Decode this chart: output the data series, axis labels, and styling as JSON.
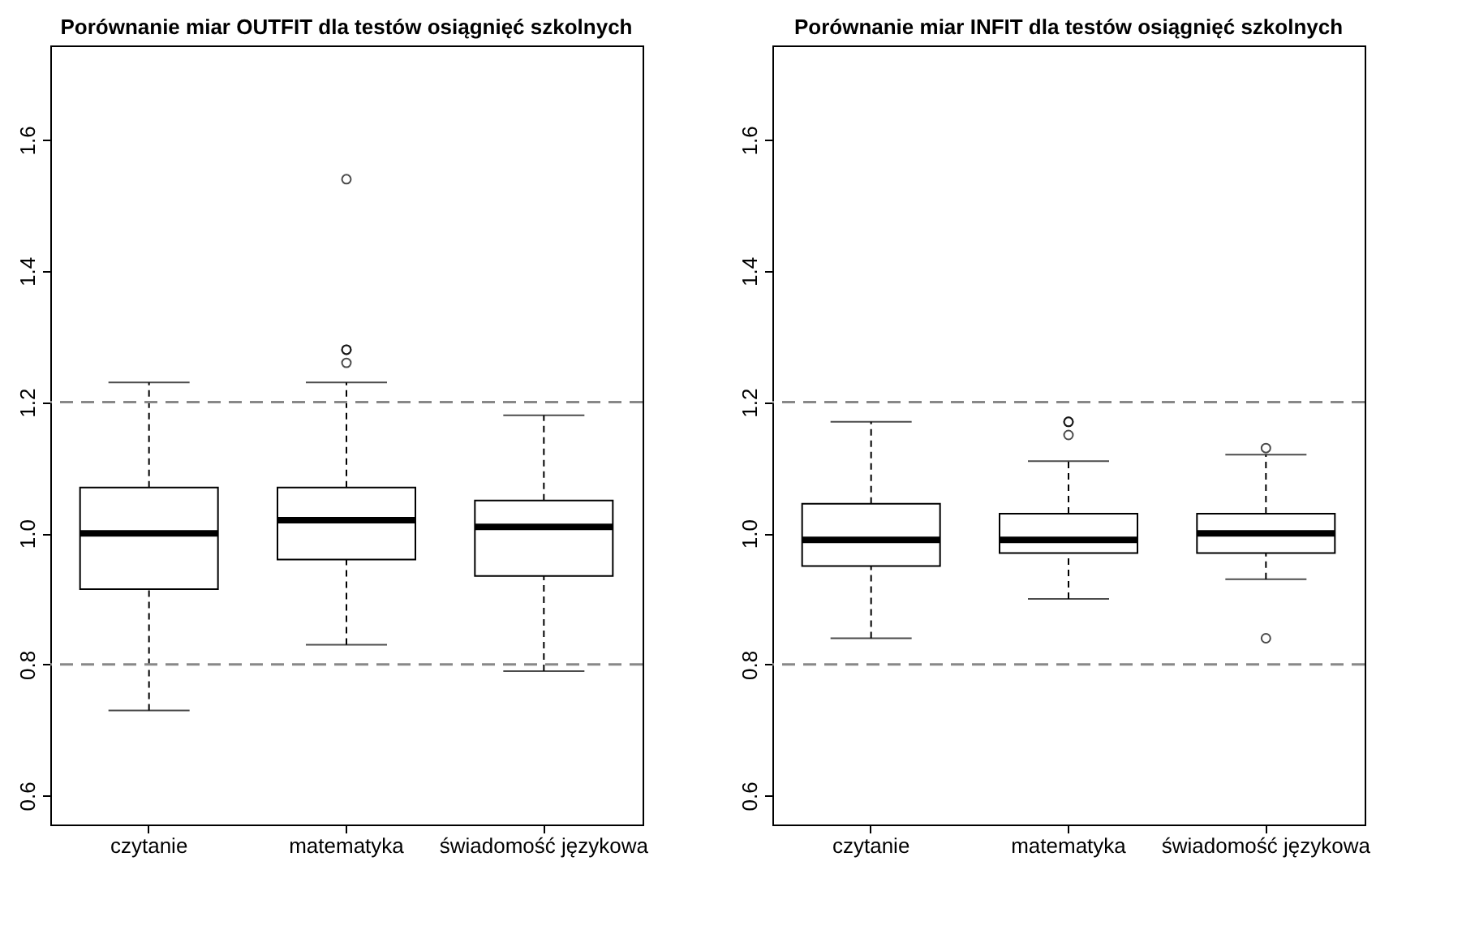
{
  "chart_data": [
    {
      "type": "box",
      "title": "Porównanie miar OUTFIT dla testów osiągnięć szkolnych",
      "categories": [
        "czytanie",
        "matematyka",
        "świadomość językowa"
      ],
      "boxes": [
        {
          "low": 0.73,
          "q1": 0.915,
          "median": 1.0,
          "q3": 1.07,
          "high": 1.23
        },
        {
          "low": 0.83,
          "q1": 0.96,
          "median": 1.02,
          "q3": 1.07,
          "high": 1.23,
          "outliers": [
            1.54,
            1.28,
            1.28,
            1.26
          ]
        },
        {
          "low": 0.79,
          "q1": 0.935,
          "median": 1.01,
          "q3": 1.05,
          "high": 1.18
        }
      ],
      "ylim": [
        0.556,
        1.744
      ],
      "yticks": [
        0.6,
        0.8,
        {
          "value": 1,
          "label": "1.0"
        },
        1.2,
        1.4,
        1.6
      ],
      "grid": false,
      "ref_lines": [
        {
          "axis": "y",
          "value": 0.8,
          "color": "#888888",
          "line_style": "dashed"
        },
        {
          "axis": "y",
          "value": 1.2,
          "color": "#888888",
          "line_style": "dashed"
        }
      ]
    },
    {
      "type": "box",
      "title": "Porównanie miar INFIT dla testów osiągnięć szkolnych",
      "categories": [
        "czytanie",
        "matematyka",
        "świadomość językowa"
      ],
      "boxes": [
        {
          "low": 0.84,
          "q1": 0.95,
          "median": 0.99,
          "q3": 1.045,
          "high": 1.17
        },
        {
          "low": 0.9,
          "q1": 0.97,
          "median": 0.99,
          "q3": 1.03,
          "high": 1.11,
          "outliers": [
            1.17,
            1.17,
            1.15
          ]
        },
        {
          "low": 0.93,
          "q1": 0.97,
          "median": 1.0,
          "q3": 1.03,
          "high": 1.12,
          "outliers": [
            1.13,
            0.84
          ]
        }
      ],
      "ylim": [
        0.556,
        1.744
      ],
      "yticks": [
        0.6,
        0.8,
        {
          "value": 1,
          "label": "1.0"
        },
        1.2,
        1.4,
        1.6
      ],
      "grid": false,
      "ref_lines": [
        {
          "axis": "y",
          "value": 0.8,
          "color": "#888888",
          "line_style": "dashed"
        },
        {
          "axis": "y",
          "value": 1.2,
          "color": "#888888",
          "line_style": "dashed"
        }
      ]
    }
  ]
}
